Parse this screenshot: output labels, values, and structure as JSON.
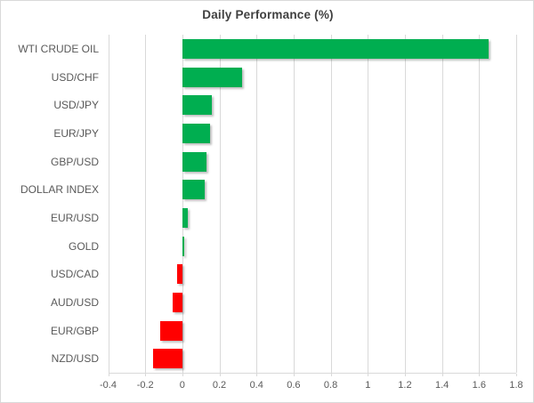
{
  "chart_data": {
    "type": "bar",
    "orientation": "horizontal",
    "title": "Daily Performance (%)",
    "categories": [
      "WTI CRUDE OIL",
      "USD/CHF",
      "USD/JPY",
      "EUR/JPY",
      "GBP/USD",
      "DOLLAR INDEX",
      "EUR/USD",
      "GOLD",
      "USD/CAD",
      "AUD/USD",
      "EUR/GBP",
      "NZD/USD"
    ],
    "values": [
      1.65,
      0.32,
      0.16,
      0.15,
      0.13,
      0.12,
      0.03,
      0.01,
      -0.03,
      -0.05,
      -0.12,
      -0.16
    ],
    "xlim": [
      -0.4,
      1.8
    ],
    "x_tick_labels": [
      "-0.4",
      "-0.2",
      "0",
      "0.2",
      "0.4",
      "0.6",
      "0.8",
      "1",
      "1.2",
      "1.4",
      "1.6",
      "1.8"
    ],
    "x_tick_values": [
      -0.4,
      -0.2,
      0,
      0.2,
      0.4,
      0.6,
      0.8,
      1,
      1.2,
      1.4,
      1.6,
      1.8
    ],
    "grid": "vertical-major-on",
    "legend": "none",
    "xlabel": "",
    "ylabel": "",
    "colors": {
      "positive": "#00AE50",
      "negative": "#FF0000",
      "gridline": "#D9D9D9",
      "axis_text": "#595959",
      "title_text": "#404040",
      "background": "#FFFFFF"
    }
  }
}
